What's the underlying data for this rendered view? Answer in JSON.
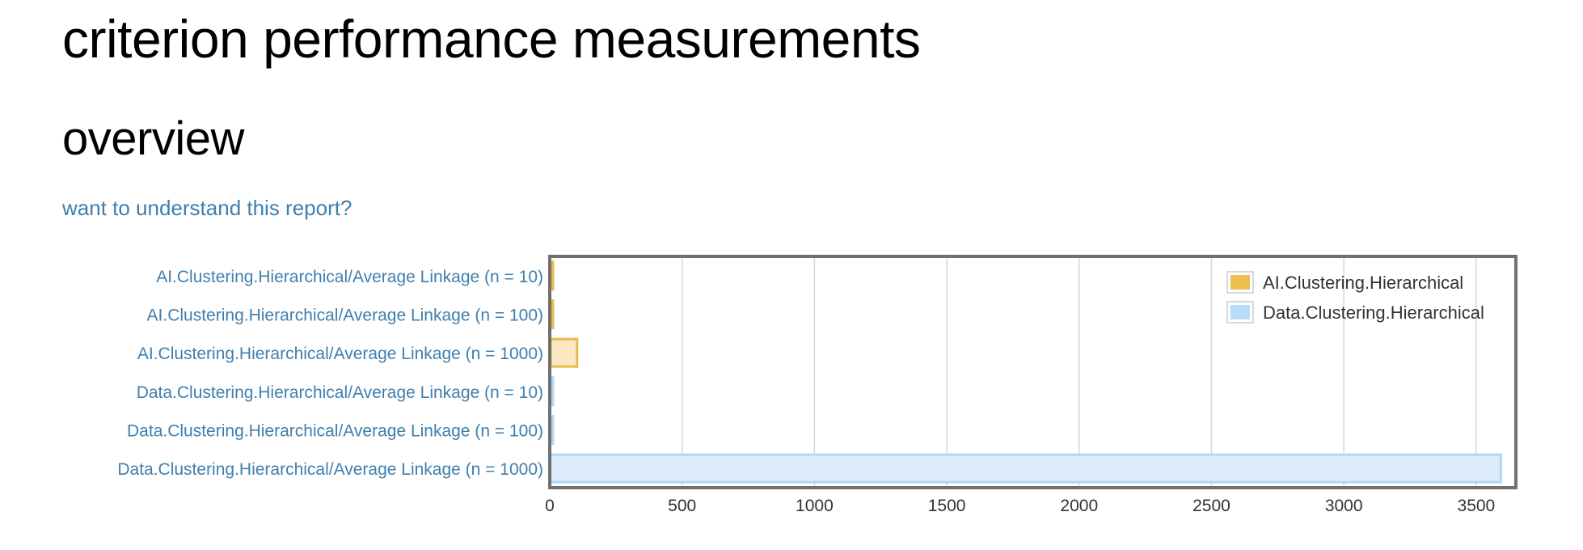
{
  "page": {
    "title": "criterion performance measurements",
    "section": "overview",
    "help_link": "want to understand this report?"
  },
  "colors": {
    "ai_fill": "#fbe7c0",
    "ai_stroke": "#e9bb4e",
    "ai_legend": "#eebf4f",
    "data_fill": "#dcecfa",
    "data_stroke": "#b2d7f3",
    "data_legend": "#b9dcf6",
    "link": "#3f7fae",
    "grid": "#d6d6d6",
    "frame": "#707070"
  },
  "chart_data": {
    "type": "bar",
    "orientation": "horizontal",
    "categories": [
      "AI.Clustering.Hierarchical/Average Linkage (n = 10)",
      "AI.Clustering.Hierarchical/Average Linkage (n = 100)",
      "AI.Clustering.Hierarchical/Average Linkage (n = 1000)",
      "Data.Clustering.Hierarchical/Average Linkage (n = 10)",
      "Data.Clustering.Hierarchical/Average Linkage (n = 100)",
      "Data.Clustering.Hierarchical/Average Linkage (n = 1000)"
    ],
    "values": [
      0.3,
      0.8,
      100,
      0.2,
      7,
      3590
    ],
    "groups": [
      0,
      0,
      0,
      1,
      1,
      1
    ],
    "series": [
      {
        "name": "AI.Clustering.Hierarchical"
      },
      {
        "name": "Data.Clustering.Hierarchical"
      }
    ],
    "xlim": [
      0,
      3650
    ],
    "xticks": [
      0,
      500,
      1000,
      1500,
      2000,
      2500,
      3000,
      3500
    ],
    "grid": true,
    "legend_position": "top-right"
  }
}
